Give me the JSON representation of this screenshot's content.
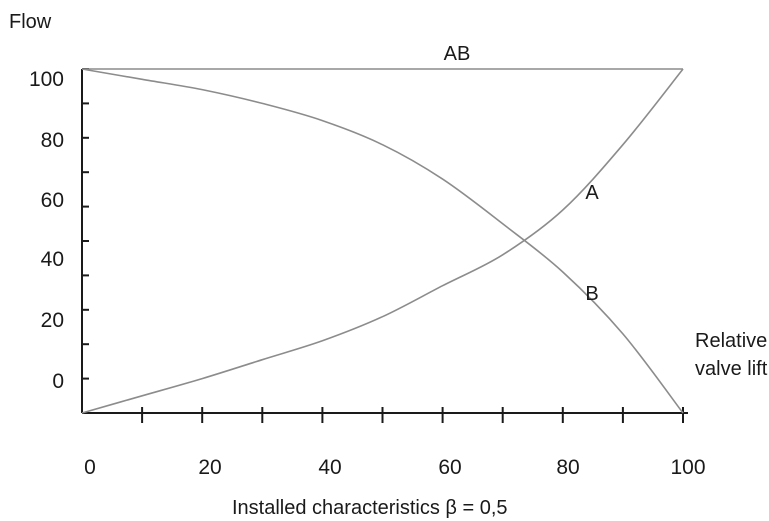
{
  "chart_data": {
    "type": "line",
    "title": "",
    "ylabel": "Flow",
    "xlabel": "Installed characteristics β = 0,5",
    "x_axis_end_label": [
      "Relative",
      "valve lift"
    ],
    "x_ticks": [
      "0",
      "20",
      "40",
      "60",
      "80",
      "100"
    ],
    "y_ticks": [
      "0",
      "20",
      "40",
      "60",
      "80",
      "100"
    ],
    "grid": false,
    "series": [
      {
        "name": "AB",
        "x": [
          0,
          20,
          40,
          60,
          80,
          100
        ],
        "y": [
          100,
          100,
          100,
          100,
          100,
          100
        ]
      },
      {
        "name": "A",
        "x": [
          0,
          10,
          20,
          30,
          40,
          50,
          60,
          70,
          80,
          90,
          100
        ],
        "y": [
          0,
          5,
          10,
          15.5,
          21,
          28,
          37,
          46,
          59,
          78,
          100
        ]
      },
      {
        "name": "B",
        "x": [
          0,
          10,
          20,
          30,
          40,
          50,
          60,
          70,
          80,
          90,
          100
        ],
        "y": [
          100,
          97,
          94,
          90,
          85,
          78,
          68,
          55,
          41,
          23,
          0
        ]
      }
    ]
  }
}
